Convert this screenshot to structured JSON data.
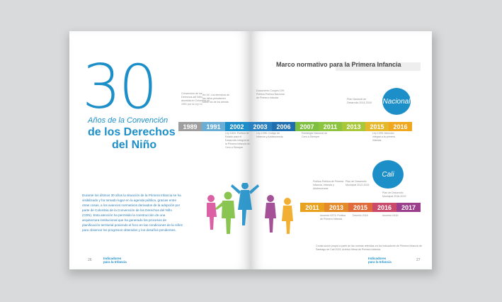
{
  "left_page": {
    "big_number": "30",
    "subtitle_line1": "Años de la Convención",
    "subtitle_line2": "de los Derechos",
    "subtitle_line3": "del Niño",
    "body": "Durante los últimos 30 años la situación de la Primera Infancia se ha visibilizado y ha tomado lugar en la agenda pública, gracias entre otras cosas, a los avances normativos derivados de la adopción por parte de Colombia de la Convención de los Derechos del Niño (CDN). Esta atención ha permitido la construcción de una arquitectura institucional que ha generado los procesos de planificación territorial poniendo el foco en las condiciones de la niñez para observar los progresos obtenidos y los desafíos pendientes.",
    "page_number": "26",
    "footer_logo_line1": "Indicadores",
    "footer_logo_line2": "para la Infancia"
  },
  "right_page": {
    "title": "Marco normativo para la Primera Infancia",
    "nacional_label": "Nacional",
    "cali_label": "Cali",
    "page_number": "27",
    "footer_logo_line1": "Indicadores",
    "footer_logo_line2": "para la Infancia",
    "caption": "Construcción propia a partir de las normas referidas en los indicadores de Primera Infancia de Santiago de Cali 2019, Archivo Mesa de Primera Infancia."
  },
  "timeline_national": [
    {
      "year": "1989",
      "color": "#9e9e9e"
    },
    {
      "year": "1991",
      "color": "#6aaed6"
    },
    {
      "year": "2002",
      "color": "#1d8fc8"
    },
    {
      "year": "2003",
      "color": "#2a7fbf"
    },
    {
      "year": "2006",
      "color": "#1f6fb0"
    },
    {
      "year": "2007",
      "color": "#7fbf3f"
    },
    {
      "year": "2011",
      "color": "#8cc43f"
    },
    {
      "year": "2013",
      "color": "#a8c83a"
    },
    {
      "year": "2015",
      "color": "#e5b72b"
    },
    {
      "year": "2016",
      "color": "#f0a71e"
    }
  ],
  "timeline_cali": [
    {
      "year": "2011",
      "color": "#e8a21f"
    },
    {
      "year": "2013",
      "color": "#e58a2a"
    },
    {
      "year": "2015",
      "color": "#e06a3a"
    },
    {
      "year": "2016",
      "color": "#c94a6b"
    },
    {
      "year": "2017",
      "color": "#9b3f8c"
    }
  ],
  "notes_national": [
    {
      "text": "Convención de los Derechos del Niño, asumida en Colombia en 1991 por la Ley 12"
    },
    {
      "text": "Art 44. Los derechos de los niños prevalecen sobre los de los demás"
    },
    {
      "text": "Documento Conpes 109: Política Pública Nacional de Primera Infancia"
    },
    {
      "text": "Ley 1098: Código de Infancia y Adolescencia"
    },
    {
      "text": "Ley 1804: Política de Estado para el Desarrollo Integral de la Primera Infancia de Cero a Siempre"
    },
    {
      "text": "Plan Nacional de Desarrollo 2014-2018"
    },
    {
      "text": "Estrategia Nacional de Cero a Siempre"
    },
    {
      "text": "Ley 1295: Atención integral a la primera infancia"
    }
  ],
  "notes_cali": [
    {
      "text": "Política Pública de Primera Infancia, Infancia y Adolescencia"
    },
    {
      "text": "Plan de Desarrollo Municipal 2012-2015"
    },
    {
      "text": "Acuerdo 0373: Política de Primera Infancia"
    },
    {
      "text": "Decreto 2016"
    },
    {
      "text": "Plan de Desarrollo Municipal 2016-2019"
    },
    {
      "text": "Acuerdo 0416"
    }
  ]
}
